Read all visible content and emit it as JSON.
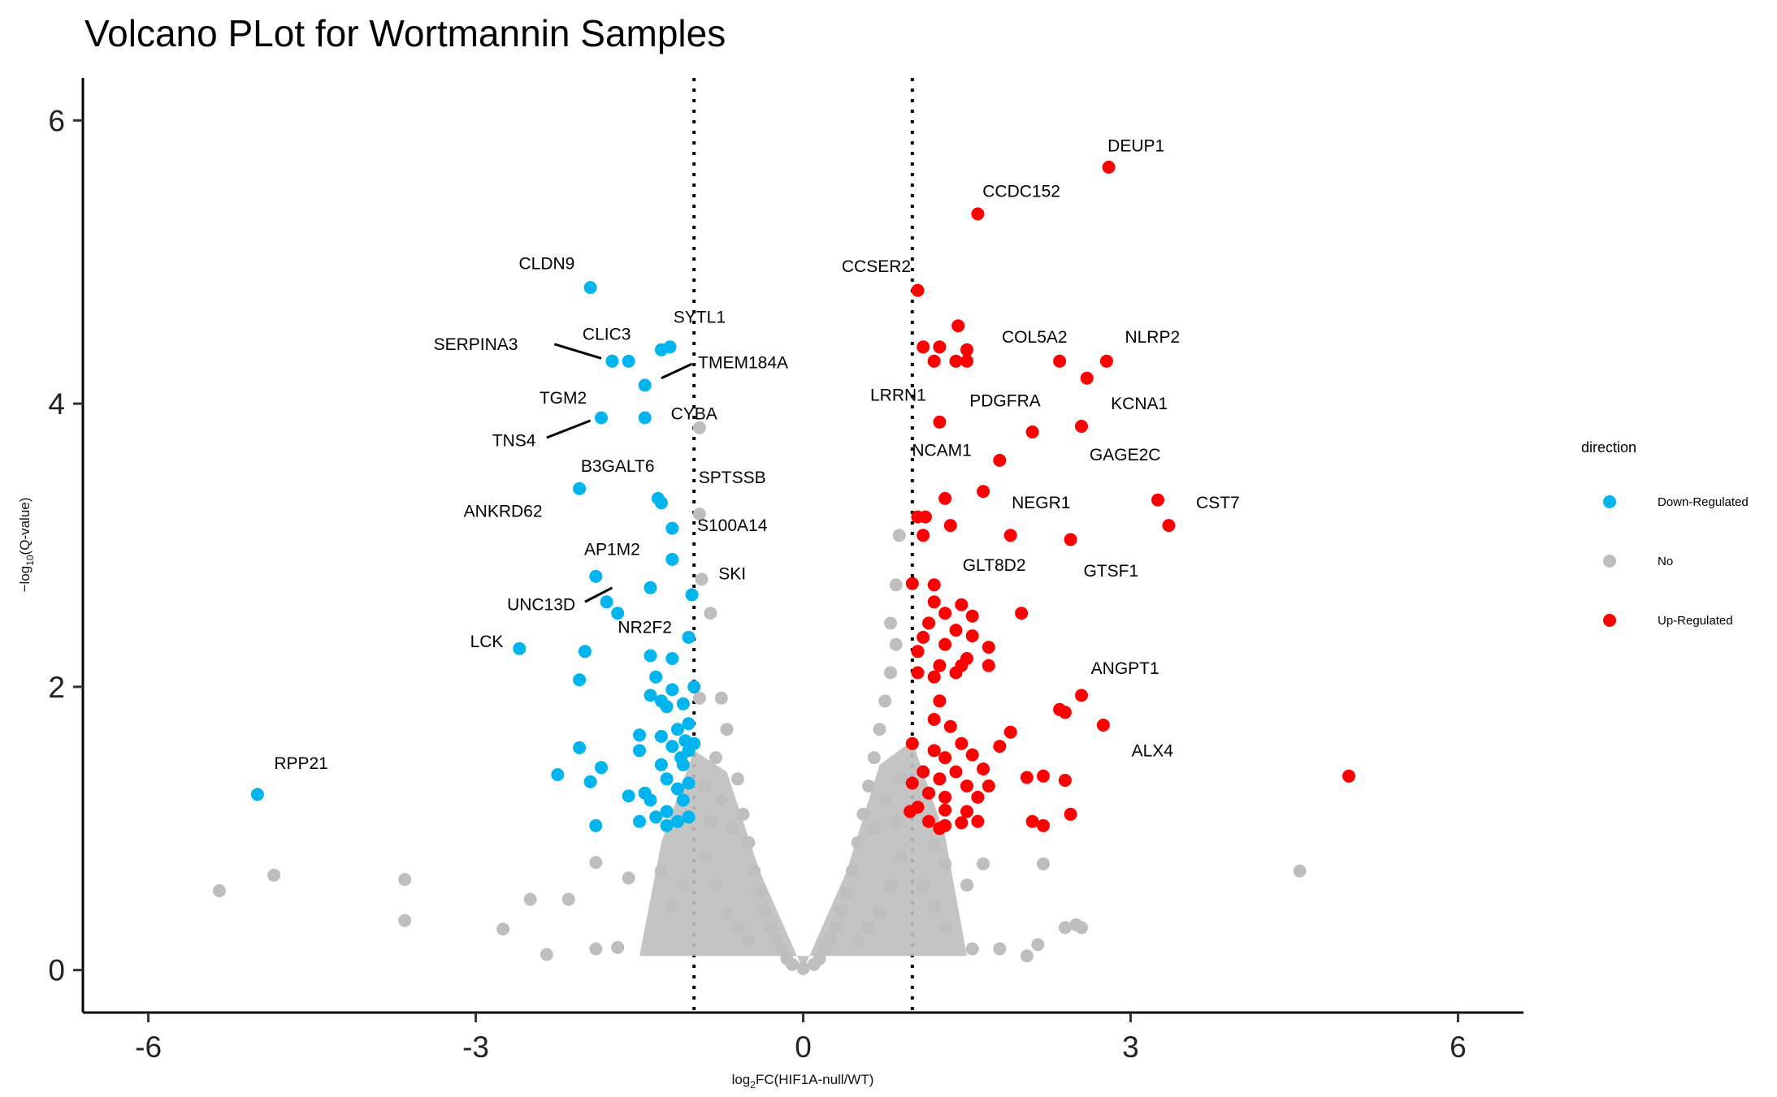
{
  "chart_data": {
    "type": "scatter",
    "title": "Volcano PLot for Wortmannin Samples",
    "xlabel": "log2FC(HIF1A-null/WT)",
    "ylabel": "−log10(Q-value)",
    "xlim": [
      -6.6,
      6.6
    ],
    "ylim": [
      -0.3,
      6.3
    ],
    "x_ticks": [
      -6,
      -3,
      0,
      3,
      6
    ],
    "x_tick_labels": [
      "-6",
      "-3",
      "0",
      "3",
      "6"
    ],
    "y_ticks": [
      0,
      2,
      4,
      6
    ],
    "y_tick_labels": [
      "0",
      "2",
      "4",
      "6"
    ],
    "thresholds_x": [
      -1,
      1
    ],
    "threshold_style": "dotted",
    "grid": false,
    "legend": {
      "title": "direction",
      "placement": "right",
      "entries": [
        {
          "label": "Down-Regulated",
          "color": "#00B4EE"
        },
        {
          "label": "No",
          "color": "#BEBEBE"
        },
        {
          "label": "Up-Regulated",
          "color": "#FF0000"
        }
      ]
    },
    "series": [
      {
        "name": "Down-Regulated",
        "color": "#00B4EE",
        "points": [
          [
            -1.95,
            4.82
          ],
          [
            -1.75,
            4.3
          ],
          [
            -1.6,
            4.3
          ],
          [
            -1.3,
            4.38
          ],
          [
            -1.22,
            4.4
          ],
          [
            -1.45,
            4.13
          ],
          [
            -1.85,
            3.9
          ],
          [
            -1.45,
            3.9
          ],
          [
            -2.05,
            3.4
          ],
          [
            -1.33,
            3.33
          ],
          [
            -1.3,
            3.3
          ],
          [
            -1.2,
            3.12
          ],
          [
            -1.9,
            2.78
          ],
          [
            -1.4,
            2.7
          ],
          [
            -1.2,
            2.9
          ],
          [
            -1.8,
            2.6
          ],
          [
            -1.7,
            2.52
          ],
          [
            -1.02,
            2.65
          ],
          [
            -2.6,
            2.27
          ],
          [
            -2.0,
            2.25
          ],
          [
            -1.4,
            2.22
          ],
          [
            -1.2,
            2.2
          ],
          [
            -1.05,
            2.35
          ],
          [
            -1.0,
            2.0
          ],
          [
            -2.05,
            2.05
          ],
          [
            -1.35,
            2.07
          ],
          [
            -1.2,
            1.98
          ],
          [
            -1.4,
            1.94
          ],
          [
            -1.3,
            1.9
          ],
          [
            -1.1,
            1.88
          ],
          [
            -1.25,
            1.86
          ],
          [
            -1.05,
            1.74
          ],
          [
            -1.15,
            1.7
          ],
          [
            -1.5,
            1.66
          ],
          [
            -1.3,
            1.65
          ],
          [
            -1.08,
            1.62
          ],
          [
            -2.05,
            1.57
          ],
          [
            -1.5,
            1.55
          ],
          [
            -1.2,
            1.58
          ],
          [
            -1.05,
            1.55
          ],
          [
            -1.12,
            1.5
          ],
          [
            -1.0,
            1.6
          ],
          [
            -1.85,
            1.43
          ],
          [
            -1.3,
            1.45
          ],
          [
            -1.1,
            1.45
          ],
          [
            -2.25,
            1.38
          ],
          [
            -1.95,
            1.33
          ],
          [
            -1.25,
            1.35
          ],
          [
            -1.05,
            1.32
          ],
          [
            -1.15,
            1.28
          ],
          [
            -1.45,
            1.25
          ],
          [
            -1.6,
            1.23
          ],
          [
            -1.4,
            1.2
          ],
          [
            -1.1,
            1.2
          ],
          [
            -1.25,
            1.12
          ],
          [
            -1.35,
            1.08
          ],
          [
            -1.15,
            1.05
          ],
          [
            -1.5,
            1.05
          ],
          [
            -1.25,
            1.02
          ],
          [
            -1.05,
            1.08
          ],
          [
            -1.9,
            1.02
          ],
          [
            -5.0,
            1.24
          ]
        ]
      },
      {
        "name": "No",
        "color": "#BEBEBE",
        "points": [
          [
            -5.35,
            0.56
          ],
          [
            -4.85,
            0.67
          ],
          [
            -3.65,
            0.64
          ],
          [
            -3.65,
            0.35
          ],
          [
            -2.75,
            0.29
          ],
          [
            -2.5,
            0.5
          ],
          [
            -2.35,
            0.11
          ],
          [
            -2.15,
            0.5
          ],
          [
            -1.9,
            0.15
          ],
          [
            -1.7,
            0.16
          ],
          [
            -1.9,
            0.76
          ],
          [
            -1.6,
            0.65
          ],
          [
            -0.95,
            3.83
          ],
          [
            -0.95,
            3.22
          ],
          [
            -0.93,
            2.76
          ],
          [
            -0.85,
            2.52
          ],
          [
            -0.95,
            1.92
          ],
          [
            -0.75,
            1.92
          ],
          [
            -0.7,
            1.7
          ],
          [
            -0.8,
            1.5
          ],
          [
            -0.6,
            1.35
          ],
          [
            -0.55,
            1.1
          ],
          [
            -0.5,
            0.9
          ],
          [
            -0.45,
            0.7
          ],
          [
            -0.4,
            0.55
          ],
          [
            -0.35,
            0.42
          ],
          [
            -0.3,
            0.3
          ],
          [
            -0.25,
            0.22
          ],
          [
            -0.2,
            0.15
          ],
          [
            -0.15,
            0.08
          ],
          [
            -0.1,
            0.04
          ],
          [
            0.0,
            0.01
          ],
          [
            0.1,
            0.04
          ],
          [
            0.15,
            0.08
          ],
          [
            0.2,
            0.15
          ],
          [
            0.25,
            0.22
          ],
          [
            0.3,
            0.3
          ],
          [
            0.35,
            0.42
          ],
          [
            0.4,
            0.55
          ],
          [
            0.45,
            0.7
          ],
          [
            0.5,
            0.9
          ],
          [
            0.55,
            1.1
          ],
          [
            0.6,
            1.3
          ],
          [
            0.65,
            1.5
          ],
          [
            0.7,
            1.7
          ],
          [
            0.75,
            1.9
          ],
          [
            0.8,
            2.1
          ],
          [
            0.85,
            2.3
          ],
          [
            0.8,
            2.45
          ],
          [
            0.85,
            2.72
          ],
          [
            0.88,
            3.07
          ],
          [
            1.2,
            0.88
          ],
          [
            1.3,
            0.75
          ],
          [
            1.5,
            0.6
          ],
          [
            1.55,
            0.15
          ],
          [
            1.65,
            0.75
          ],
          [
            1.8,
            0.15
          ],
          [
            2.05,
            0.1
          ],
          [
            2.15,
            0.18
          ],
          [
            2.2,
            0.75
          ],
          [
            2.4,
            0.3
          ],
          [
            2.5,
            0.32
          ],
          [
            2.55,
            0.3
          ],
          [
            4.55,
            0.7
          ],
          [
            -0.6,
            0.3
          ],
          [
            -0.5,
            0.2
          ],
          [
            -0.7,
            0.4
          ],
          [
            -0.8,
            0.6
          ],
          [
            -0.9,
            0.8
          ],
          [
            -1.1,
            0.6
          ],
          [
            -1.2,
            0.45
          ],
          [
            -1.3,
            0.7
          ],
          [
            -0.65,
            1.0
          ],
          [
            -0.75,
            1.2
          ],
          [
            -0.85,
            1.05
          ],
          [
            -0.9,
            1.3
          ],
          [
            0.6,
            0.3
          ],
          [
            0.5,
            0.2
          ],
          [
            0.7,
            0.4
          ],
          [
            0.8,
            0.6
          ],
          [
            0.9,
            0.8
          ],
          [
            1.1,
            0.6
          ],
          [
            1.2,
            0.45
          ],
          [
            1.3,
            0.3
          ],
          [
            0.65,
            1.0
          ],
          [
            0.75,
            1.2
          ],
          [
            0.85,
            1.05
          ],
          [
            0.9,
            1.35
          ]
        ]
      },
      {
        "name": "Up-Regulated",
        "color": "#FF0000",
        "points": [
          [
            2.8,
            5.67
          ],
          [
            1.6,
            5.34
          ],
          [
            1.05,
            4.8
          ],
          [
            1.42,
            4.55
          ],
          [
            1.1,
            4.4
          ],
          [
            1.25,
            4.4
          ],
          [
            1.5,
            4.38
          ],
          [
            1.2,
            4.3
          ],
          [
            1.4,
            4.3
          ],
          [
            1.5,
            4.3
          ],
          [
            2.35,
            4.3
          ],
          [
            2.78,
            4.3
          ],
          [
            2.6,
            4.18
          ],
          [
            1.25,
            3.87
          ],
          [
            2.1,
            3.8
          ],
          [
            2.55,
            3.84
          ],
          [
            1.8,
            3.6
          ],
          [
            1.65,
            3.38
          ],
          [
            1.3,
            3.33
          ],
          [
            3.25,
            3.32
          ],
          [
            1.05,
            3.2
          ],
          [
            1.12,
            3.2
          ],
          [
            1.35,
            3.14
          ],
          [
            1.9,
            3.07
          ],
          [
            1.1,
            3.07
          ],
          [
            2.45,
            3.04
          ],
          [
            3.35,
            3.14
          ],
          [
            1.0,
            2.73
          ],
          [
            1.2,
            2.72
          ],
          [
            1.2,
            2.6
          ],
          [
            1.45,
            2.58
          ],
          [
            1.3,
            2.52
          ],
          [
            1.55,
            2.5
          ],
          [
            2.0,
            2.52
          ],
          [
            1.15,
            2.45
          ],
          [
            1.4,
            2.4
          ],
          [
            1.55,
            2.36
          ],
          [
            1.1,
            2.35
          ],
          [
            1.3,
            2.3
          ],
          [
            1.7,
            2.28
          ],
          [
            1.05,
            2.25
          ],
          [
            1.5,
            2.2
          ],
          [
            1.25,
            2.15
          ],
          [
            1.45,
            2.15
          ],
          [
            1.7,
            2.15
          ],
          [
            1.05,
            2.1
          ],
          [
            1.4,
            2.1
          ],
          [
            1.2,
            2.07
          ],
          [
            1.25,
            1.9
          ],
          [
            2.55,
            1.94
          ],
          [
            2.35,
            1.84
          ],
          [
            2.4,
            1.82
          ],
          [
            1.2,
            1.77
          ],
          [
            1.35,
            1.72
          ],
          [
            1.9,
            1.68
          ],
          [
            2.75,
            1.73
          ],
          [
            1.0,
            1.6
          ],
          [
            1.2,
            1.55
          ],
          [
            1.45,
            1.6
          ],
          [
            1.8,
            1.58
          ],
          [
            1.3,
            1.5
          ],
          [
            1.55,
            1.52
          ],
          [
            1.1,
            1.4
          ],
          [
            1.4,
            1.4
          ],
          [
            1.65,
            1.42
          ],
          [
            1.0,
            1.32
          ],
          [
            1.25,
            1.35
          ],
          [
            1.5,
            1.3
          ],
          [
            1.7,
            1.3
          ],
          [
            2.05,
            1.36
          ],
          [
            2.2,
            1.37
          ],
          [
            2.4,
            1.34
          ],
          [
            1.15,
            1.25
          ],
          [
            1.3,
            1.22
          ],
          [
            1.6,
            1.22
          ],
          [
            1.05,
            1.15
          ],
          [
            1.3,
            1.13
          ],
          [
            1.5,
            1.12
          ],
          [
            1.15,
            1.05
          ],
          [
            1.3,
            1.02
          ],
          [
            1.6,
            1.05
          ],
          [
            2.1,
            1.05
          ],
          [
            2.2,
            1.02
          ],
          [
            2.45,
            1.1
          ],
          [
            0.98,
            1.12
          ],
          [
            1.25,
            1.0
          ],
          [
            1.45,
            1.04
          ],
          [
            5.0,
            1.37
          ]
        ]
      }
    ],
    "annotations": [
      {
        "text": "DEUP1",
        "x": 3.05,
        "y": 5.78,
        "anchor": "middle"
      },
      {
        "text": "CCDC152",
        "x": 2.0,
        "y": 5.46,
        "anchor": "middle"
      },
      {
        "text": "CCSER2",
        "x": 0.67,
        "y": 4.93,
        "anchor": "middle"
      },
      {
        "text": "COL5A2",
        "x": 2.12,
        "y": 4.43,
        "anchor": "middle"
      },
      {
        "text": "NLRP2",
        "x": 3.2,
        "y": 4.43,
        "anchor": "middle"
      },
      {
        "text": "LRRN1",
        "x": 0.87,
        "y": 4.02,
        "anchor": "middle"
      },
      {
        "text": "PDGFRA",
        "x": 1.85,
        "y": 3.98,
        "anchor": "middle"
      },
      {
        "text": "KCNA1",
        "x": 3.08,
        "y": 3.96,
        "anchor": "middle"
      },
      {
        "text": "NCAM1",
        "x": 1.27,
        "y": 3.63,
        "anchor": "middle"
      },
      {
        "text": "GAGE2C",
        "x": 2.95,
        "y": 3.6,
        "anchor": "middle"
      },
      {
        "text": "NEGR1",
        "x": 2.18,
        "y": 3.26,
        "anchor": "middle"
      },
      {
        "text": "CST7",
        "x": 3.8,
        "y": 3.26,
        "anchor": "middle"
      },
      {
        "text": "GLT8D2",
        "x": 1.75,
        "y": 2.82,
        "anchor": "middle"
      },
      {
        "text": "GTSF1",
        "x": 2.82,
        "y": 2.78,
        "anchor": "middle"
      },
      {
        "text": "ANGPT1",
        "x": 2.95,
        "y": 2.09,
        "anchor": "middle"
      },
      {
        "text": "ALX4",
        "x": 3.2,
        "y": 1.51,
        "anchor": "middle"
      },
      {
        "text": "CLDN9",
        "x": -2.35,
        "y": 4.95,
        "anchor": "middle"
      },
      {
        "text": "SYTL1",
        "x": -0.95,
        "y": 4.57,
        "anchor": "middle"
      },
      {
        "text": "SERPINA3",
        "x": -3.0,
        "y": 4.38,
        "anchor": "middle"
      },
      {
        "text": "CLIC3",
        "x": -1.8,
        "y": 4.45,
        "anchor": "middle"
      },
      {
        "text": "TMEM184A",
        "x": -0.55,
        "y": 4.25,
        "anchor": "middle"
      },
      {
        "text": "TGM2",
        "x": -2.2,
        "y": 4.0,
        "anchor": "middle"
      },
      {
        "text": "CYBA",
        "x": -1.0,
        "y": 3.89,
        "anchor": "middle"
      },
      {
        "text": "TNS4",
        "x": -2.65,
        "y": 3.7,
        "anchor": "middle"
      },
      {
        "text": "B3GALT6",
        "x": -1.7,
        "y": 3.52,
        "anchor": "middle"
      },
      {
        "text": "SPTSSB",
        "x": -0.65,
        "y": 3.44,
        "anchor": "middle"
      },
      {
        "text": "ANKRD62",
        "x": -2.75,
        "y": 3.2,
        "anchor": "middle"
      },
      {
        "text": "S100A14",
        "x": -0.65,
        "y": 3.1,
        "anchor": "middle"
      },
      {
        "text": "AP1M2",
        "x": -1.75,
        "y": 2.93,
        "anchor": "middle"
      },
      {
        "text": "SKI",
        "x": -0.65,
        "y": 2.76,
        "anchor": "middle"
      },
      {
        "text": "UNC13D",
        "x": -2.4,
        "y": 2.54,
        "anchor": "middle"
      },
      {
        "text": "NR2F2",
        "x": -1.45,
        "y": 2.38,
        "anchor": "middle"
      },
      {
        "text": "LCK",
        "x": -2.9,
        "y": 2.28,
        "anchor": "middle"
      },
      {
        "text": "RPP21",
        "x": -4.6,
        "y": 1.42,
        "anchor": "middle"
      }
    ],
    "connectors": [
      {
        "from": [
          -2.28,
          4.42
        ],
        "to": [
          -1.85,
          4.32
        ]
      },
      {
        "from": [
          -1.3,
          4.18
        ],
        "to": [
          -1.02,
          4.28
        ]
      },
      {
        "from": [
          -2.35,
          3.76
        ],
        "to": [
          -1.95,
          3.88
        ]
      },
      {
        "from": [
          -2.0,
          2.6
        ],
        "to": [
          -1.75,
          2.7
        ]
      }
    ]
  }
}
